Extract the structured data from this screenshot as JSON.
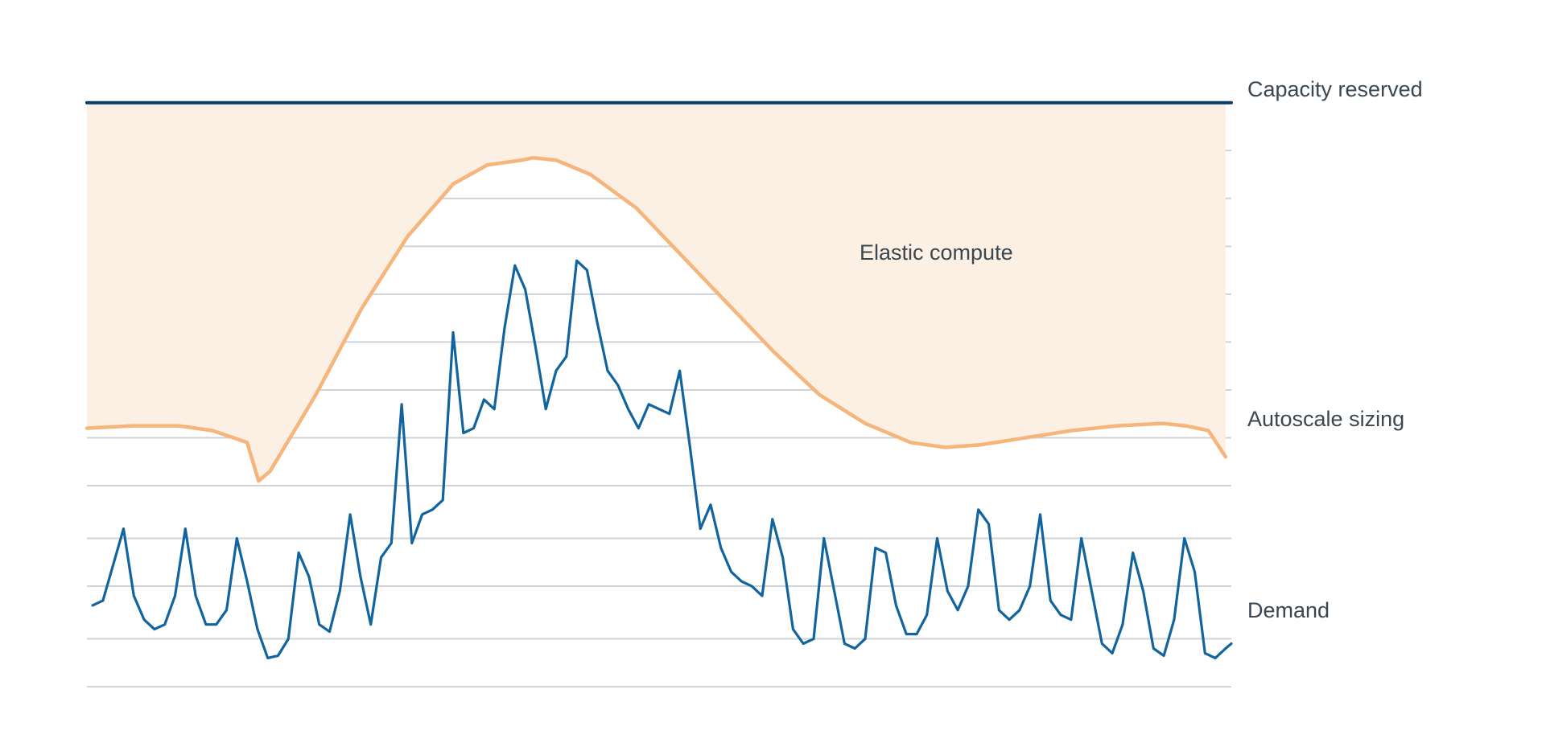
{
  "chart_data": {
    "type": "line",
    "title": "",
    "xlabel": "",
    "ylabel": "",
    "grid": true,
    "x_range": [
      0,
      100
    ],
    "y_range": [
      0,
      13
    ],
    "gridline_values": [
      0.2,
      1.2,
      2.3,
      3.3,
      4.4,
      5.4,
      6.4,
      7.4,
      8.4,
      9.4,
      10.4,
      11.4
    ],
    "colors": {
      "capacity": "#0f3a63",
      "autoscale": "#f5b57b",
      "demand": "#11649e",
      "elastic_fill": "#fcefe3",
      "grid": "#cfd3d7",
      "label": "#3a4650"
    },
    "series": [
      {
        "name": "Capacity reserved",
        "x": [
          0,
          100
        ],
        "y": [
          12.4,
          12.4
        ]
      },
      {
        "name": "Autoscale sizing",
        "x": [
          0,
          4,
          8,
          11,
          14,
          15,
          16,
          18,
          20,
          24,
          28,
          32,
          35,
          38,
          39,
          41,
          44,
          48,
          52,
          56,
          60,
          64,
          68,
          72,
          75,
          78,
          82,
          86,
          90,
          94,
          96,
          98,
          99.5
        ],
        "y": [
          5.6,
          5.65,
          5.65,
          5.55,
          5.3,
          4.5,
          4.7,
          5.5,
          6.3,
          8.1,
          9.6,
          10.7,
          11.1,
          11.2,
          11.25,
          11.2,
          10.9,
          10.2,
          9.2,
          8.2,
          7.2,
          6.3,
          5.7,
          5.3,
          5.2,
          5.25,
          5.4,
          5.55,
          5.65,
          5.7,
          5.65,
          5.55,
          5.0
        ]
      },
      {
        "name": "Demand",
        "x": [
          0.5,
          1.4,
          3.2,
          4.1,
          5,
          5.9,
          6.8,
          7.7,
          8.6,
          9.5,
          10.4,
          11.3,
          12.2,
          13.1,
          14,
          14.9,
          15.8,
          16.7,
          17.6,
          18.5,
          19.4,
          20.3,
          21.2,
          22.1,
          23,
          23.9,
          24.8,
          25.7,
          26.6,
          27.5,
          28.4,
          29.3,
          30.2,
          31.1,
          32,
          32.9,
          33.8,
          34.7,
          35.6,
          36.5,
          37.4,
          38.3,
          39.2,
          40.1,
          41,
          41.9,
          42.8,
          43.7,
          44.6,
          45.5,
          46.4,
          47.3,
          48.2,
          49.1,
          50,
          50.9,
          51.8,
          52.7,
          53.6,
          54.5,
          55.4,
          56.3,
          57.2,
          58.1,
          59,
          59.9,
          60.8,
          61.7,
          62.6,
          63.5,
          64.4,
          65.3,
          66.2,
          67.1,
          68,
          68.9,
          69.8,
          70.7,
          71.6,
          72.5,
          73.4,
          74.3,
          75.2,
          76.1,
          77,
          77.9,
          78.8,
          79.7,
          80.6,
          81.5,
          82.4,
          83.3,
          84.2,
          85.1,
          86,
          86.9,
          87.8,
          88.7,
          89.6,
          90.5,
          91.4,
          92.3,
          93.2,
          94.1,
          95,
          95.9,
          96.8,
          97.7,
          98.6,
          99.5,
          100
        ],
        "y": [
          1.9,
          2.0,
          3.5,
          2.1,
          1.6,
          1.4,
          1.5,
          2.1,
          3.5,
          2.1,
          1.5,
          1.5,
          1.8,
          3.3,
          2.4,
          1.4,
          0.8,
          0.85,
          1.2,
          3.0,
          2.5,
          1.5,
          1.35,
          2.2,
          3.8,
          2.5,
          1.5,
          2.9,
          3.2,
          6.1,
          3.2,
          3.8,
          3.9,
          4.1,
          7.6,
          5.5,
          5.6,
          6.2,
          6.0,
          7.7,
          9.0,
          8.5,
          7.3,
          6.0,
          6.8,
          7.1,
          9.1,
          8.9,
          7.8,
          6.8,
          6.5,
          6.0,
          5.6,
          6.1,
          6.0,
          5.9,
          6.8,
          5.2,
          3.5,
          4.0,
          3.1,
          2.6,
          2.4,
          2.3,
          2.1,
          3.7,
          2.9,
          1.4,
          1.1,
          1.2,
          3.3,
          2.2,
          1.1,
          1.0,
          1.2,
          3.1,
          3.0,
          1.9,
          1.3,
          1.3,
          1.7,
          3.3,
          2.2,
          1.8,
          2.3,
          3.9,
          3.6,
          1.8,
          1.6,
          1.8,
          2.3,
          3.8,
          2.0,
          1.7,
          1.6,
          3.3,
          2.2,
          1.1,
          0.9,
          1.5,
          3.0,
          2.2,
          1.0,
          0.85,
          1.6,
          3.3,
          2.6,
          0.9,
          0.8,
          1.0,
          1.1
        ]
      }
    ],
    "labels": {
      "capacity_reserved": "Capacity reserved",
      "autoscale_sizing": "Autoscale sizing",
      "demand": "Demand",
      "elastic_compute": "Elastic compute"
    }
  }
}
